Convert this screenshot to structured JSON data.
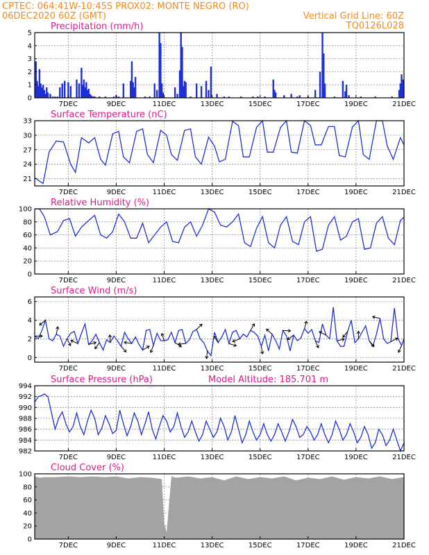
{
  "header": {
    "line1_left": "CPTEC:   064:41W-10:45S   PROX02: MONTE NEGRO (RO)",
    "line2_left": "06DEC2020 60Z (GMT)",
    "line2_right": "Vertical Grid Line: 60Z",
    "line3_right": "TQ0126L028"
  },
  "colors": {
    "header": "#f28a1c",
    "panel_title": "#e0188c",
    "series": "#1f2fd6",
    "bars": "#1f2fd6",
    "cloud": "#a3a3a3",
    "arrows": "#000000"
  },
  "x_axis": {
    "labels": [
      "7DEC",
      "9DEC",
      "11DEC",
      "13DEC",
      "15DEC",
      "17DEC",
      "19DEC",
      "21DEC"
    ],
    "label_days": [
      1,
      3,
      5,
      7,
      9,
      11,
      13,
      15
    ],
    "range_days": [
      -0.4,
      15
    ]
  },
  "chart_data": [
    {
      "type": "bar",
      "title": "Precipitation (mm/h)",
      "ylim": [
        0,
        5
      ],
      "yticks": [
        "0",
        "1",
        "2",
        "3",
        "4",
        "5"
      ],
      "grid": true,
      "x_days": [
        -0.35,
        -0.3,
        -0.25,
        -0.2,
        -0.15,
        -0.1,
        -0.05,
        0.0,
        0.05,
        0.1,
        0.15,
        0.25,
        0.35,
        0.45,
        0.55,
        0.65,
        0.75,
        0.85,
        1.0,
        1.1,
        1.35,
        1.45,
        1.55,
        1.6,
        1.65,
        1.7,
        1.75,
        1.8,
        1.85,
        1.9,
        1.95,
        2.0,
        2.05,
        2.1,
        2.3,
        2.55,
        2.9,
        3.0,
        3.1,
        3.3,
        3.6,
        3.65,
        3.7,
        3.75,
        3.8,
        4.2,
        4.4,
        4.6,
        4.7,
        4.8,
        4.85,
        4.9,
        4.95,
        5.45,
        5.55,
        5.65,
        5.7,
        5.75,
        5.8,
        5.85,
        5.9,
        6.1,
        6.35,
        6.55,
        6.75,
        6.85,
        6.95,
        7.2,
        7.5,
        7.7,
        8.2,
        8.7,
        8.9,
        9.2,
        9.55,
        9.6,
        9.65,
        10.0,
        10.3,
        10.55,
        10.65,
        11.0,
        11.3,
        11.5,
        11.6,
        11.65,
        11.7,
        12.1,
        12.45,
        12.55,
        12.6,
        12.7,
        13.2,
        13.8,
        14.5,
        14.8,
        14.85,
        14.9,
        14.95
      ],
      "values": [
        2.8,
        1.3,
        0.9,
        2.2,
        1.1,
        0.8,
        1.0,
        0.6,
        0.3,
        0.8,
        0.4,
        0.3,
        0.1,
        0.1,
        0.1,
        0.8,
        1.1,
        1.3,
        1.2,
        0.9,
        1.4,
        1.1,
        2.3,
        1.0,
        1.4,
        0.8,
        1.2,
        0.6,
        0.7,
        0.3,
        0.2,
        0.1,
        0.1,
        0.1,
        0.1,
        0.1,
        0.1,
        0.2,
        0.1,
        1.1,
        1.3,
        2.8,
        1.2,
        0.8,
        1.6,
        0.1,
        0.1,
        1.1,
        0.6,
        5.0,
        4.2,
        1.1,
        0.4,
        0.8,
        0.3,
        2.1,
        5.0,
        3.9,
        0.9,
        1.3,
        1.2,
        0.1,
        1.1,
        0.9,
        1.3,
        0.6,
        2.4,
        0.3,
        0.1,
        0.1,
        0.1,
        0.1,
        0.1,
        0.1,
        1.4,
        0.6,
        0.4,
        0.2,
        0.3,
        0.1,
        0.2,
        0.1,
        0.6,
        2.0,
        5.0,
        3.4,
        1.1,
        0.1,
        1.3,
        0.5,
        1.0,
        0.2,
        0.1,
        0.1,
        0.1,
        0.6,
        1.1,
        1.8,
        1.4
      ]
    },
    {
      "type": "line",
      "title": "Surface Temperature (nC)",
      "ylim": [
        19.5,
        33
      ],
      "yticks": [
        "21",
        "24",
        "27",
        "30",
        "33"
      ],
      "grid": true,
      "x_days": [
        -0.4,
        -0.2,
        -0.05,
        0.2,
        0.5,
        0.8,
        1.1,
        1.3,
        1.55,
        1.85,
        2.1,
        2.35,
        2.55,
        2.85,
        3.1,
        3.3,
        3.55,
        3.85,
        4.1,
        4.3,
        4.55,
        4.85,
        5.1,
        5.3,
        5.55,
        5.85,
        6.1,
        6.3,
        6.55,
        6.85,
        7.1,
        7.3,
        7.55,
        7.85,
        8.1,
        8.3,
        8.55,
        8.85,
        9.1,
        9.3,
        9.55,
        9.85,
        10.1,
        10.3,
        10.55,
        10.85,
        11.1,
        11.3,
        11.55,
        11.85,
        12.1,
        12.3,
        12.55,
        12.85,
        13.1,
        13.3,
        13.55,
        13.85,
        14.1,
        14.3,
        14.55,
        14.85,
        15.0
      ],
      "values": [
        21.2,
        20.5,
        20.0,
        26.5,
        28.8,
        28.6,
        24.0,
        22.3,
        29.5,
        28.4,
        29.5,
        25.0,
        23.8,
        30.3,
        30.8,
        25.5,
        24.3,
        30.8,
        31.3,
        26.0,
        24.3,
        31.0,
        30.0,
        26.0,
        24.8,
        31.0,
        31.3,
        25.5,
        24.0,
        29.6,
        27.7,
        24.5,
        25.0,
        32.9,
        32.0,
        25.5,
        25.5,
        31.6,
        33.0,
        26.5,
        26.5,
        31.6,
        33.0,
        26.5,
        26.3,
        33.0,
        32.0,
        28.0,
        28.0,
        31.8,
        31.8,
        25.8,
        25.5,
        31.7,
        33.0,
        26.0,
        25.0,
        33.0,
        33.0,
        27.8,
        25.0,
        29.5,
        28.0
      ]
    },
    {
      "type": "line",
      "title": "Relative Humidity (%)",
      "ylim": [
        0,
        100
      ],
      "yticks": [
        "0",
        "20",
        "40",
        "60",
        "80",
        "100"
      ],
      "grid": true,
      "x_days": [
        -0.4,
        -0.2,
        0.0,
        0.25,
        0.55,
        0.8,
        1.05,
        1.3,
        1.55,
        1.85,
        2.1,
        2.35,
        2.6,
        2.85,
        3.1,
        3.35,
        3.6,
        3.85,
        4.1,
        4.35,
        4.6,
        4.85,
        5.1,
        5.35,
        5.6,
        5.85,
        6.1,
        6.35,
        6.6,
        6.85,
        7.1,
        7.35,
        7.6,
        7.85,
        8.1,
        8.35,
        8.6,
        8.85,
        9.1,
        9.35,
        9.6,
        9.85,
        10.1,
        10.35,
        10.6,
        10.85,
        11.1,
        11.35,
        11.6,
        11.85,
        12.1,
        12.35,
        12.6,
        12.85,
        13.1,
        13.35,
        13.6,
        13.85,
        14.1,
        14.35,
        14.6,
        14.85,
        15.0
      ],
      "values": [
        100,
        100,
        88,
        60,
        65,
        82,
        85,
        58,
        72,
        82,
        90,
        60,
        55,
        65,
        92,
        80,
        55,
        55,
        78,
        48,
        60,
        72,
        80,
        50,
        48,
        72,
        80,
        58,
        75,
        100,
        95,
        75,
        72,
        80,
        92,
        48,
        42,
        70,
        88,
        48,
        40,
        75,
        88,
        50,
        45,
        80,
        88,
        35,
        38,
        75,
        88,
        52,
        58,
        80,
        85,
        38,
        40,
        78,
        88,
        55,
        45,
        82,
        87
      ]
    },
    {
      "type": "line",
      "title": "Surface Wind (m/s)",
      "ylim": [
        -0.5,
        6.5
      ],
      "yticks": [
        "0",
        "2",
        "4",
        "6"
      ],
      "grid": true,
      "x_days": [
        -0.4,
        -0.25,
        -0.1,
        0.05,
        0.2,
        0.35,
        0.5,
        0.65,
        0.8,
        0.95,
        1.1,
        1.25,
        1.4,
        1.55,
        1.7,
        1.85,
        2.0,
        2.15,
        2.3,
        2.45,
        2.6,
        2.75,
        2.9,
        3.05,
        3.2,
        3.35,
        3.5,
        3.65,
        3.8,
        3.95,
        4.1,
        4.25,
        4.4,
        4.55,
        4.7,
        4.85,
        5.0,
        5.15,
        5.3,
        5.45,
        5.6,
        5.75,
        5.9,
        6.05,
        6.2,
        6.35,
        6.5,
        6.65,
        6.8,
        6.95,
        7.1,
        7.25,
        7.4,
        7.55,
        7.7,
        7.85,
        8.0,
        8.15,
        8.3,
        8.45,
        8.6,
        8.75,
        8.9,
        9.05,
        9.2,
        9.35,
        9.5,
        9.65,
        9.8,
        9.95,
        10.1,
        10.25,
        10.4,
        10.55,
        10.7,
        10.85,
        11.0,
        11.15,
        11.3,
        11.45,
        11.6,
        11.75,
        11.9,
        12.05,
        12.2,
        12.35,
        12.5,
        12.65,
        12.8,
        12.95,
        13.1,
        13.25,
        13.4,
        13.55,
        13.7,
        13.85,
        14.0,
        14.15,
        14.3,
        14.45,
        14.6,
        14.75,
        14.9,
        15.0
      ],
      "values": [
        2.3,
        2.0,
        2.9,
        4.0,
        2.0,
        1.8,
        2.5,
        2.3,
        1.2,
        2.0,
        2.6,
        2.8,
        1.5,
        2.6,
        3.6,
        1.4,
        1.8,
        2.5,
        1.6,
        0.8,
        1.9,
        1.6,
        2.3,
        1.8,
        1.2,
        2.7,
        2.0,
        1.5,
        2.2,
        1.4,
        0.8,
        2.9,
        3.0,
        1.3,
        2.6,
        1.8,
        1.8,
        1.9,
        2.7,
        1.6,
        2.9,
        3.0,
        1.5,
        1.9,
        2.8,
        3.0,
        2.0,
        1.6,
        0.7,
        0.2,
        2.7,
        1.6,
        2.2,
        3.0,
        1.5,
        2.7,
        2.9,
        2.0,
        2.5,
        2.2,
        2.9,
        2.7,
        2.3,
        1.2,
        2.4,
        0.7,
        2.5,
        1.8,
        0.9,
        2.9,
        2.3,
        0.7,
        2.4,
        1.8,
        2.1,
        3.1,
        2.6,
        3.0,
        1.8,
        1.6,
        3.6,
        2.4,
        2.0,
        5.4,
        1.8,
        1.2,
        1.2,
        2.8,
        4.0,
        1.6,
        2.0,
        2.7,
        3.4,
        1.8,
        1.2,
        2.5,
        4.2,
        2.0,
        1.5,
        1.7,
        5.3,
        2.0,
        1.3,
        2.0
      ]
    },
    {
      "type": "line",
      "title": "Surface Pressure (hPa)",
      "subtitle": "Model Altitude: 185.701 m",
      "ylim": [
        982,
        994
      ],
      "yticks": [
        "982",
        "984",
        "986",
        "988",
        "990",
        "992",
        "994"
      ],
      "grid": true,
      "x_days": [
        -0.4,
        -0.25,
        -0.1,
        0.0,
        0.15,
        0.3,
        0.45,
        0.6,
        0.75,
        0.9,
        1.05,
        1.2,
        1.35,
        1.5,
        1.65,
        1.8,
        1.95,
        2.1,
        2.25,
        2.4,
        2.55,
        2.7,
        2.85,
        3.0,
        3.15,
        3.3,
        3.45,
        3.6,
        3.75,
        3.9,
        4.05,
        4.2,
        4.35,
        4.5,
        4.65,
        4.8,
        4.95,
        5.1,
        5.25,
        5.4,
        5.55,
        5.7,
        5.85,
        6.0,
        6.15,
        6.3,
        6.45,
        6.6,
        6.75,
        6.9,
        7.05,
        7.2,
        7.35,
        7.5,
        7.65,
        7.8,
        7.95,
        8.1,
        8.25,
        8.4,
        8.55,
        8.7,
        8.85,
        9.0,
        9.15,
        9.3,
        9.45,
        9.6,
        9.75,
        9.9,
        10.05,
        10.2,
        10.35,
        10.5,
        10.65,
        10.8,
        10.95,
        11.1,
        11.25,
        11.4,
        11.55,
        11.7,
        11.85,
        12.0,
        12.15,
        12.3,
        12.45,
        12.6,
        12.75,
        12.9,
        13.05,
        13.2,
        13.35,
        13.5,
        13.65,
        13.8,
        13.95,
        14.1,
        14.25,
        14.4,
        14.55,
        14.7,
        14.85,
        15.0
      ],
      "values": [
        991.0,
        992.0,
        992.2,
        992.5,
        992.0,
        989.0,
        986.0,
        988.0,
        989.2,
        987.0,
        985.5,
        986.5,
        989.0,
        986.5,
        985.0,
        987.5,
        989.5,
        988.0,
        985.0,
        986.2,
        988.5,
        987.0,
        985.2,
        985.8,
        989.5,
        987.0,
        984.8,
        986.5,
        989.0,
        987.5,
        985.0,
        987.0,
        989.2,
        986.0,
        984.2,
        986.5,
        988.5,
        987.5,
        985.5,
        986.5,
        989.0,
        986.5,
        984.5,
        985.5,
        987.5,
        985.5,
        983.8,
        985.0,
        987.5,
        986.0,
        984.5,
        985.5,
        988.0,
        986.5,
        984.0,
        985.5,
        988.5,
        986.0,
        983.5,
        985.0,
        987.5,
        985.5,
        984.0,
        985.0,
        987.0,
        985.0,
        983.8,
        985.0,
        987.0,
        985.5,
        983.8,
        985.5,
        987.8,
        986.5,
        984.5,
        985.0,
        986.5,
        985.5,
        984.0,
        985.0,
        987.0,
        985.0,
        983.5,
        985.0,
        987.5,
        986.0,
        984.0,
        985.0,
        987.0,
        985.5,
        983.5,
        984.5,
        986.5,
        985.0,
        982.5,
        983.5,
        986.0,
        985.0,
        983.0,
        984.0,
        986.0,
        984.0,
        982.0,
        983.5
      ]
    },
    {
      "type": "area",
      "title": "Cloud Cover (%)",
      "ylim": [
        0,
        100
      ],
      "yticks": [
        "0",
        "20",
        "40",
        "60",
        "80",
        "100"
      ],
      "grid": true,
      "x_days": [
        -0.4,
        -0.2,
        0.0,
        0.5,
        1.0,
        1.5,
        2.0,
        2.5,
        3.0,
        3.5,
        4.0,
        4.5,
        4.9,
        5.0,
        5.1,
        5.3,
        5.5,
        6.0,
        6.5,
        7.0,
        7.5,
        8.0,
        8.5,
        9.0,
        9.5,
        10.0,
        10.5,
        11.0,
        11.5,
        12.0,
        12.5,
        13.0,
        13.5,
        14.0,
        14.5,
        15.0
      ],
      "values": [
        96,
        94,
        95,
        95,
        96,
        95,
        96,
        95,
        96,
        93,
        95,
        94,
        92,
        25,
        10,
        96,
        94,
        96,
        93,
        95,
        90,
        96,
        92,
        95,
        93,
        96,
        90,
        94,
        92,
        96,
        91,
        95,
        93,
        96,
        92,
        95
      ]
    }
  ]
}
